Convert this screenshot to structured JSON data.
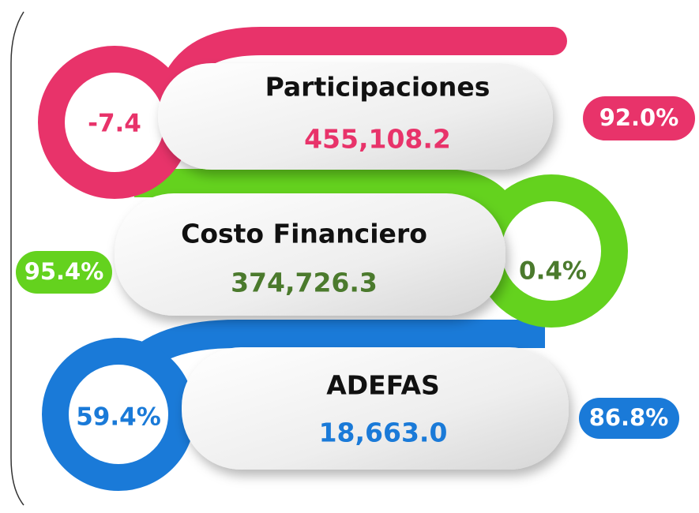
{
  "items": [
    {
      "label": "Participaciones",
      "value": "455,108.2",
      "ring": "-7.4",
      "badge": "92.0%"
    },
    {
      "label": "Costo Financiero",
      "value": "374,726.3",
      "ring": "0.4%",
      "badge": "95.4%"
    },
    {
      "label": "ADEFAS",
      "value": "18,663.0",
      "ring": "59.4%",
      "badge": "86.8%"
    }
  ]
}
